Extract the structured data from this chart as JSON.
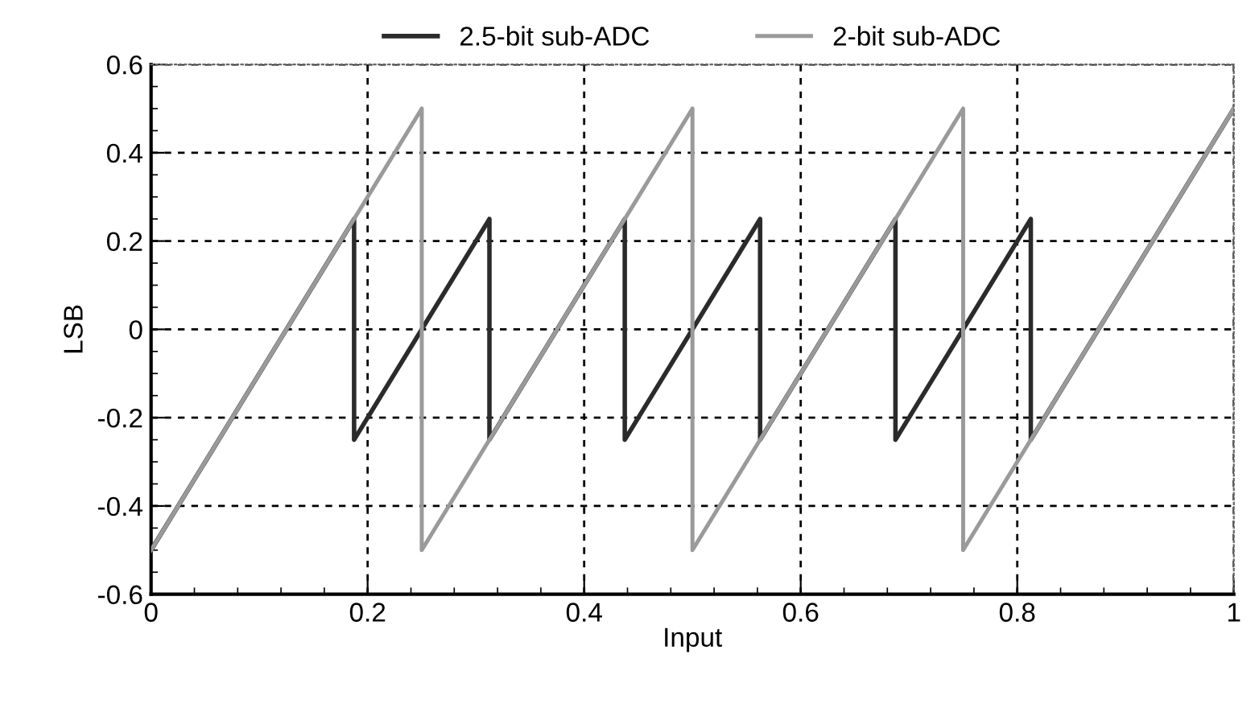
{
  "chart_data": {
    "type": "line",
    "xlabel": "Input",
    "ylabel": "LSB",
    "series": [
      {
        "name": "2.5-bit sub-ADC",
        "color": "#2b2b2b",
        "x": [
          0,
          0.1875,
          0.1875,
          0.3125,
          0.3125,
          0.4375,
          0.4375,
          0.5625,
          0.5625,
          0.6875,
          0.6875,
          0.8125,
          0.8125,
          1
        ],
        "values": [
          -0.5,
          0.25,
          -0.25,
          0.25,
          -0.25,
          0.25,
          -0.25,
          0.25,
          -0.25,
          0.25,
          -0.25,
          0.25,
          -0.25,
          0.5
        ]
      },
      {
        "name": "2-bit sub-ADC",
        "color": "#9a9a9a",
        "x": [
          0,
          0.25,
          0.25,
          0.5,
          0.5,
          0.75,
          0.75,
          1
        ],
        "values": [
          -0.5,
          0.5,
          -0.5,
          0.5,
          -0.5,
          0.5,
          -0.5,
          0.5
        ]
      }
    ],
    "xlim": [
      0,
      1
    ],
    "ylim": [
      -0.6,
      0.6
    ],
    "xticks": [
      0,
      0.2,
      0.4,
      0.6,
      0.8,
      1
    ],
    "yticks": [
      -0.6,
      -0.4,
      -0.2,
      0,
      0.2,
      0.4,
      0.6
    ],
    "grid": true,
    "legend": "top",
    "marker": "none",
    "line_style": "solid"
  }
}
